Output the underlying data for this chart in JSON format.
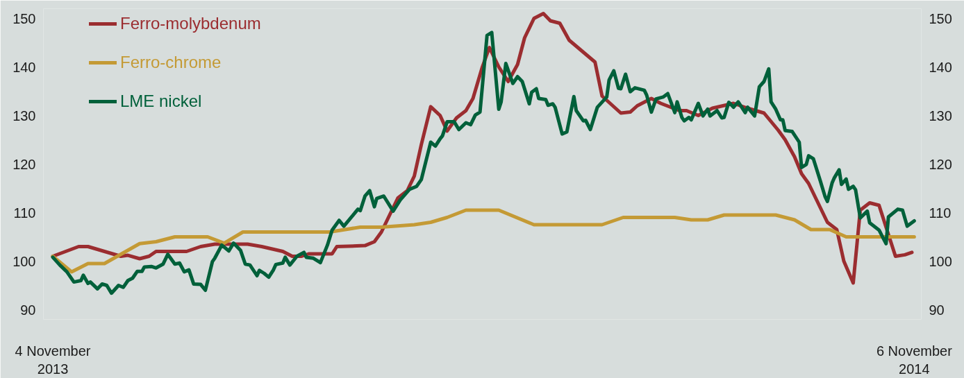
{
  "chart_data": {
    "type": "line",
    "xlim": [
      "2013-10-31",
      "2014-11-09"
    ],
    "xticks": [
      {
        "value": "2013-11-04",
        "label": "4 November\n2013"
      },
      {
        "value": "2014-11-06",
        "label": "6 November\n2014"
      }
    ],
    "ylim": [
      88,
      152
    ],
    "yticks": [
      90,
      100,
      110,
      120,
      130,
      140,
      150
    ],
    "y2lim": [
      88,
      152
    ],
    "y2ticks": [
      90,
      100,
      110,
      120,
      130,
      140,
      150
    ],
    "grid": false,
    "legend": "top left",
    "marker": "none",
    "line_style": "solid",
    "series": [
      {
        "name": "Ferro-molybdenum",
        "color": "#9b2d30",
        "x": [
          "2013-11-04",
          "2013-11-15",
          "2013-11-19",
          "2013-11-26",
          "2013-12-03",
          "2013-12-06",
          "2013-12-11",
          "2013-12-15",
          "2013-12-18",
          "2013-12-31",
          "2014-01-06",
          "2014-01-12",
          "2014-01-26",
          "2014-02-01",
          "2014-02-10",
          "2014-02-14",
          "2014-02-18",
          "2014-02-21",
          "2014-03-03",
          "2014-03-05",
          "2014-03-17",
          "2014-03-21",
          "2014-03-24",
          "2014-03-26",
          "2014-03-31",
          "2014-04-04",
          "2014-04-07",
          "2014-04-10",
          "2014-04-14",
          "2014-04-18",
          "2014-04-21",
          "2014-04-25",
          "2014-04-29",
          "2014-05-02",
          "2014-05-06",
          "2014-05-09",
          "2014-05-13",
          "2014-05-17",
          "2014-05-21",
          "2014-05-24",
          "2014-05-28",
          "2014-06-01",
          "2014-06-04",
          "2014-06-08",
          "2014-06-12",
          "2014-06-23",
          "2014-06-26",
          "2014-07-04",
          "2014-07-08",
          "2014-07-11",
          "2014-07-17",
          "2014-07-21",
          "2014-07-29",
          "2014-08-01",
          "2014-08-06",
          "2014-08-12",
          "2014-08-21",
          "2014-08-27",
          "2014-09-03",
          "2014-09-09",
          "2014-09-12",
          "2014-09-16",
          "2014-09-19",
          "2014-09-22",
          "2014-09-26",
          "2014-09-30",
          "2014-10-04",
          "2014-10-07",
          "2014-10-11",
          "2014-10-14",
          "2014-10-18",
          "2014-10-22",
          "2014-10-29",
          "2014-11-02",
          "2014-11-05"
        ],
        "values": [
          101,
          103,
          103,
          102,
          101,
          101.2,
          100.5,
          101,
          102,
          102,
          103,
          103.5,
          103.5,
          103,
          102,
          101,
          101,
          101.5,
          101.5,
          103,
          103.2,
          104,
          106,
          108,
          113,
          114.5,
          117.5,
          124,
          131.8,
          130,
          126.8,
          129.5,
          131,
          133.5,
          140,
          144,
          140,
          137,
          140.5,
          146,
          150,
          151,
          149.5,
          149,
          145.5,
          141,
          134,
          130.5,
          130.7,
          132,
          133.5,
          132.5,
          131,
          131,
          130,
          131.5,
          132.5,
          131.5,
          130.5,
          127,
          125,
          121.5,
          118,
          116,
          112,
          108,
          106.5,
          100,
          95.5,
          110.5,
          112,
          111.5,
          101,
          101.3,
          101.8
        ]
      },
      {
        "name": "Ferro-chrome",
        "color": "#c49a35",
        "x": [
          "2013-11-04",
          "2013-11-12",
          "2013-11-19",
          "2013-11-26",
          "2013-12-11",
          "2013-12-18",
          "2013-12-26",
          "2014-01-09",
          "2014-01-16",
          "2014-01-24",
          "2014-03-02",
          "2014-03-15",
          "2014-03-24",
          "2014-04-07",
          "2014-04-14",
          "2014-04-21",
          "2014-04-29",
          "2014-05-13",
          "2014-05-28",
          "2014-06-26",
          "2014-07-05",
          "2014-07-27",
          "2014-08-03",
          "2014-08-10",
          "2014-08-17",
          "2014-09-08",
          "2014-09-16",
          "2014-09-23",
          "2014-10-01",
          "2014-10-08",
          "2014-11-06"
        ],
        "values": [
          101,
          97.8,
          99.5,
          99.5,
          103.6,
          104,
          105,
          105,
          103.7,
          106,
          106,
          107,
          107,
          107.5,
          108,
          109,
          110.5,
          110.5,
          107.5,
          107.5,
          109,
          109,
          108.5,
          108.5,
          109.5,
          109.5,
          108.5,
          106.5,
          106.5,
          105,
          105
        ]
      },
      {
        "name": "LME nickel",
        "color": "#00603a",
        "x": [
          "2013-11-04",
          "2013-11-07",
          "2013-11-10",
          "2013-11-13",
          "2013-11-16",
          "2013-11-17",
          "2013-11-19",
          "2013-11-20",
          "2013-11-23",
          "2013-11-25",
          "2013-11-27",
          "2013-11-29",
          "2013-12-02",
          "2013-12-04",
          "2013-12-06",
          "2013-12-08",
          "2013-12-10",
          "2013-12-12",
          "2013-12-13",
          "2013-12-16",
          "2013-12-18",
          "2013-12-21",
          "2013-12-23",
          "2013-12-26",
          "2013-12-28",
          "2013-12-30",
          "2014-01-01",
          "2014-01-03",
          "2014-01-06",
          "2014-01-08",
          "2014-01-11",
          "2014-01-12",
          "2014-01-15",
          "2014-01-18",
          "2014-01-20",
          "2014-01-23",
          "2014-01-25",
          "2014-01-27",
          "2014-01-30",
          "2014-01-31",
          "2014-02-02",
          "2014-02-04",
          "2014-02-06",
          "2014-02-07",
          "2014-02-10",
          "2014-02-11",
          "2014-02-13",
          "2014-02-16",
          "2014-02-19",
          "2014-02-20",
          "2014-02-23",
          "2014-02-26",
          "2014-03-01",
          "2014-03-03",
          "2014-03-06",
          "2014-03-08",
          "2014-03-14",
          "2014-03-15",
          "2014-03-17",
          "2014-03-19",
          "2014-03-21",
          "2014-03-22",
          "2014-03-25",
          "2014-03-29",
          "2014-04-01",
          "2014-04-05",
          "2014-04-08",
          "2014-04-10",
          "2014-04-14",
          "2014-04-16",
          "2014-04-18",
          "2014-04-19",
          "2014-04-21",
          "2014-04-24",
          "2014-04-26",
          "2014-04-29",
          "2014-05-01",
          "2014-05-03",
          "2014-05-05",
          "2014-05-08",
          "2014-05-10",
          "2014-05-13",
          "2014-05-14",
          "2014-05-16",
          "2014-05-19",
          "2014-05-21",
          "2014-05-23",
          "2014-05-26",
          "2014-05-27",
          "2014-05-29",
          "2014-05-30",
          "2014-06-02",
          "2014-06-03",
          "2014-06-05",
          "2014-06-06",
          "2014-06-09",
          "2014-06-11",
          "2014-06-14",
          "2014-06-15",
          "2014-06-18",
          "2014-06-19",
          "2014-06-21",
          "2014-06-24",
          "2014-06-28",
          "2014-06-29",
          "2014-07-01",
          "2014-07-03",
          "2014-07-04",
          "2014-07-06",
          "2014-07-08",
          "2014-07-10",
          "2014-07-14",
          "2014-07-15",
          "2014-07-17",
          "2014-07-19",
          "2014-07-22",
          "2014-07-24",
          "2014-07-27",
          "2014-07-28",
          "2014-07-30",
          "2014-07-31",
          "2014-08-02",
          "2014-08-03",
          "2014-08-06",
          "2014-08-08",
          "2014-08-10",
          "2014-08-11",
          "2014-08-14",
          "2014-08-16",
          "2014-08-17",
          "2014-08-19",
          "2014-08-21",
          "2014-08-23",
          "2014-08-26",
          "2014-08-27",
          "2014-08-30",
          "2014-09-01",
          "2014-09-03",
          "2014-09-05",
          "2014-09-06",
          "2014-09-08",
          "2014-09-10",
          "2014-09-11",
          "2014-09-12",
          "2014-09-15",
          "2014-09-18",
          "2014-09-19",
          "2014-09-21",
          "2014-09-22",
          "2014-09-24",
          "2014-09-27",
          "2014-09-29",
          "2014-09-30",
          "2014-10-02",
          "2014-10-03",
          "2014-10-05",
          "2014-10-06",
          "2014-10-08",
          "2014-10-09",
          "2014-10-11",
          "2014-10-12",
          "2014-10-14",
          "2014-10-17",
          "2014-10-18",
          "2014-10-22",
          "2014-10-25",
          "2014-10-26",
          "2014-10-30",
          "2014-11-01",
          "2014-11-03",
          "2014-11-06"
        ],
        "values": [
          100.8,
          99.2,
          97.8,
          95.7,
          96,
          97.1,
          95.4,
          95.7,
          94.3,
          95.3,
          95,
          93.4,
          95,
          94.6,
          96,
          96.5,
          97.9,
          97.9,
          98.8,
          98.9,
          98.6,
          99.4,
          101.4,
          99.4,
          99.6,
          97.8,
          98.2,
          95.3,
          95.2,
          94,
          99.9,
          100.6,
          103.3,
          102.1,
          103.7,
          102.2,
          99.4,
          99.2,
          97,
          98.1,
          97.5,
          96.7,
          98.2,
          99.3,
          99.6,
          100.8,
          99.2,
          101,
          101.8,
          100.8,
          100.6,
          99.7,
          103.3,
          106.4,
          108.4,
          107.2,
          110.7,
          110.4,
          113.4,
          114.5,
          111.2,
          112.9,
          113.4,
          110.3,
          112.6,
          114.8,
          115.4,
          116.8,
          124.5,
          123.7,
          125.2,
          125.8,
          128.7,
          128.7,
          127.1,
          128.5,
          128.1,
          130.1,
          130.7,
          146.5,
          147.1,
          131.3,
          132.8,
          140.7,
          136.6,
          138,
          137,
          132.4,
          134.8,
          135.5,
          133.5,
          133.3,
          132.1,
          132.4,
          131.7,
          126.2,
          126.6,
          133.9,
          131,
          128.9,
          129,
          127.1,
          131.7,
          133.8,
          137.3,
          139.2,
          135.6,
          135.5,
          138.5,
          134.9,
          135.7,
          135.2,
          134.2,
          130.7,
          133.4,
          133.8,
          134.5,
          130.6,
          132.8,
          129.6,
          128.9,
          129.6,
          129.1,
          132.5,
          129.9,
          131.3,
          129.9,
          131,
          129.5,
          129.6,
          132.7,
          131.7,
          132.8,
          130.6,
          131.7,
          129.9,
          135.9,
          137,
          139.6,
          132.8,
          131.3,
          129.1,
          129.1,
          126.9,
          126.7,
          124.5,
          119.3,
          119.9,
          121.7,
          121.1,
          116.5,
          113.3,
          112.3,
          116.1,
          117.2,
          118.8,
          115.8,
          116.9,
          114.8,
          115.4,
          114.7,
          108.9,
          110.3,
          107.9,
          106.4,
          103.6,
          109.1,
          110.7,
          110.5,
          107.2,
          108.3
        ]
      }
    ]
  }
}
